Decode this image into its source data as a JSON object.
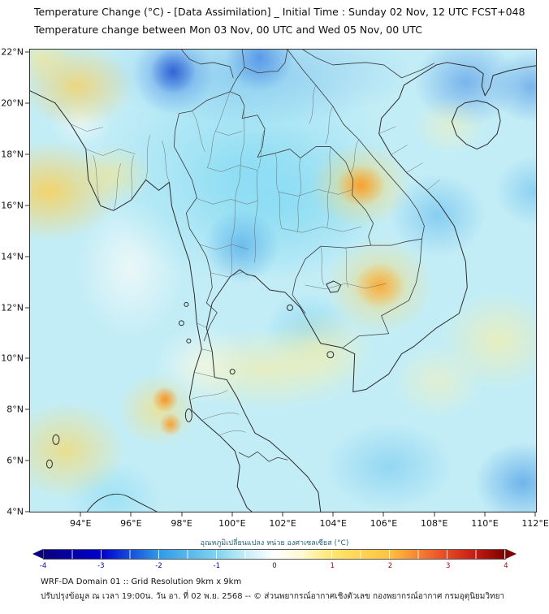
{
  "header": {
    "title_line1": "Temperature Change (°C) - [Data Assimilation] _ Initial Time : Sunday 02 Nov, 12 UTC FCST+048",
    "title_line2": "Temperature change between Mon 03 Nov, 00 UTC and Wed 05 Nov, 00 UTC"
  },
  "map": {
    "y_ticks": [
      "22°N",
      "20°N",
      "18°N",
      "16°N",
      "14°N",
      "12°N",
      "10°N",
      "8°N",
      "6°N",
      "4°N"
    ],
    "x_ticks": [
      "94°E",
      "96°E",
      "98°E",
      "100°E",
      "102°E",
      "104°E",
      "106°E",
      "108°E",
      "110°E",
      "112°E"
    ]
  },
  "colorbar": {
    "title": "อุณหภูมิเปลี่ยนแปลง หน่วย องศาเซลเซียส (°C)",
    "ticks": [
      "-4",
      "-3",
      "-2",
      "-1",
      "0",
      "1",
      "2",
      "3",
      "4"
    ],
    "min_value": -4,
    "max_value": 4,
    "min_color": "#0a0080",
    "zero_color": "#ffffff",
    "max_color": "#7f0000"
  },
  "footer": {
    "line1": "WRF-DA Domain 01 :: Grid Resolution 9km x 9km",
    "line2": "ปรับปรุงข้อมูล ณ เวลา 19:00น. วัน อา. ที่ 02 พ.ย. 2568 -- © ส่วนพยากรณ์อากาศเชิงตัวเลข กองพยากรณ์อากาศ กรมอุตุนิยมวิทยา"
  }
}
